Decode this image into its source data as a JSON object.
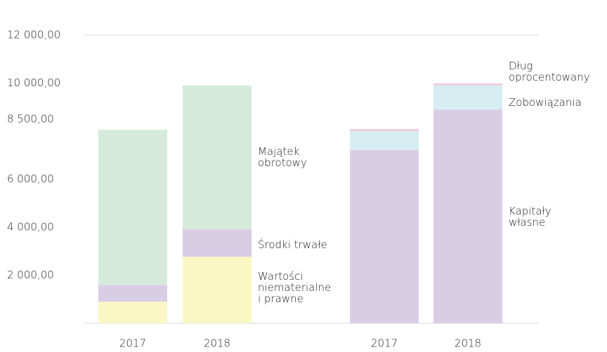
{
  "chart_data": {
    "type": "stacked_bar",
    "categories": [
      "2017",
      "2018",
      "2017",
      "2018"
    ],
    "series": [
      {
        "name": "Wartości niematerialne i prawne",
        "color": "#fbf7c4",
        "values": [
          900,
          2770,
          null,
          null
        ]
      },
      {
        "name": "Środki trwałe",
        "color": "#d9cde6",
        "values": [
          700,
          1140,
          null,
          null
        ]
      },
      {
        "name": "Majątek obrotowy",
        "color": "#d6eadb",
        "values": [
          6460,
          5990,
          null,
          null
        ]
      },
      {
        "name": "Kapitały własne",
        "color": "#d9cde6",
        "values": [
          null,
          null,
          7210,
          8900
        ]
      },
      {
        "name": "Zobowiązania",
        "color": "#d6edf2",
        "values": [
          null,
          null,
          790,
          1000
        ]
      },
      {
        "name": "Dług oprocentowany",
        "color": "#f0cde1",
        "values": [
          null,
          null,
          90,
          90
        ]
      }
    ],
    "ylim": [
      0,
      12000
    ],
    "yticks": [
      {
        "value": 2000,
        "label": "2 000,00"
      },
      {
        "value": 4000,
        "label": "4 000,00"
      },
      {
        "value": 6000,
        "label": "6 000,00"
      },
      {
        "value": 8500,
        "label": "8 500,00"
      },
      {
        "value": 10000,
        "label": "10 000,00"
      },
      {
        "value": 12000,
        "label": "12 000,00"
      }
    ]
  }
}
